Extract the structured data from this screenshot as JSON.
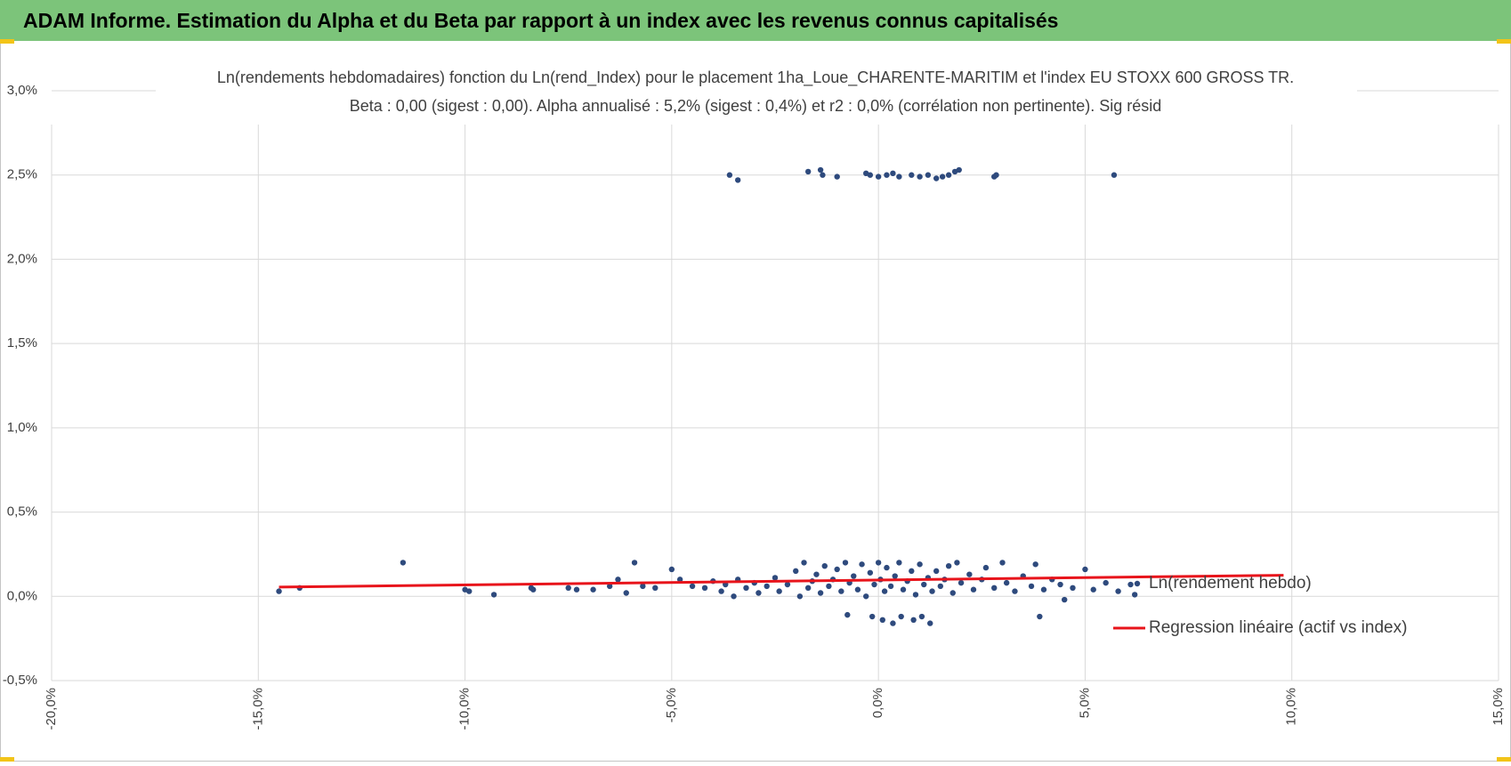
{
  "header": {
    "title": "ADAM Informe. Estimation du Alpha et du Beta par rapport à un index avec les revenus connus capitalisés"
  },
  "chart_data": {
    "type": "scatter",
    "title": "Ln(rendements hebdomadaires) fonction du Ln(rend_Index) pour le placement 1ha_Loue_CHARENTE-MARITIM et l'index EU STOXX 600 GROSS TR.",
    "subtitle": "Beta : 0,00 (sigest : 0,00). Alpha annualisé : 5,2% (sigest : 0,4%) et r2 : 0,0% (corrélation non pertinente). Sig résid",
    "xlim": [
      -20,
      15
    ],
    "xticks": [
      {
        "value": -20,
        "label": "-20,0%"
      },
      {
        "value": -15,
        "label": "-15,0%"
      },
      {
        "value": -10,
        "label": "-10,0%"
      },
      {
        "value": -5,
        "label": "-5,0%"
      },
      {
        "value": 0,
        "label": "0,0%"
      },
      {
        "value": 5,
        "label": "5,0%"
      },
      {
        "value": 10,
        "label": "10,0%"
      },
      {
        "value": 15,
        "label": "15,0%"
      }
    ],
    "ylim": [
      -0.5,
      3.0
    ],
    "yticks": [
      {
        "value": -0.5,
        "label": "-0,5%"
      },
      {
        "value": 0,
        "label": "0,0%"
      },
      {
        "value": 0.5,
        "label": "0,5%"
      },
      {
        "value": 1.0,
        "label": "1,0%"
      },
      {
        "value": 1.5,
        "label": "1,5%"
      },
      {
        "value": 2.0,
        "label": "2,0%"
      },
      {
        "value": 2.5,
        "label": "2,5%"
      },
      {
        "value": 3.0,
        "label": "3,0%"
      }
    ],
    "grid": true,
    "legend": "right",
    "series": [
      {
        "name": "Ln(rendement hebdo)",
        "type": "scatter",
        "color": "#2e4a7d",
        "x": [
          -14.5,
          -14,
          -11.5,
          -10,
          -9.9,
          -9.3,
          -8.4,
          -8.35,
          -7.5,
          -7.3,
          -6.9,
          -6.5,
          -6.3,
          -6.1,
          -5.9,
          -5.7,
          -5.4,
          -5.0,
          -4.8,
          -4.5,
          -4.2,
          -4.0,
          -3.8,
          -3.7,
          -3.5,
          -3.4,
          -3.2,
          -3.0,
          -2.9,
          -2.7,
          -2.5,
          -2.4,
          -2.2,
          -2.0,
          -1.9,
          -1.8,
          -1.7,
          -1.6,
          -1.5,
          -1.4,
          -1.3,
          -1.2,
          -1.1,
          -1.0,
          -0.9,
          -0.8,
          -0.75,
          -0.7,
          -0.6,
          -0.5,
          -0.4,
          -0.3,
          -0.2,
          -0.15,
          -0.1,
          0,
          0.05,
          0.1,
          0.15,
          0.2,
          0.3,
          0.35,
          0.4,
          0.5,
          0.55,
          0.6,
          0.7,
          0.8,
          0.85,
          0.9,
          1.0,
          1.05,
          1.1,
          1.2,
          1.25,
          1.3,
          1.4,
          1.5,
          1.6,
          1.7,
          1.8,
          1.9,
          2.0,
          2.2,
          2.3,
          2.5,
          2.6,
          2.8,
          3.0,
          3.1,
          3.3,
          3.5,
          3.7,
          3.8,
          4.0,
          4.2,
          4.4,
          4.5,
          4.7,
          3.9,
          5.0,
          5.2,
          5.5,
          5.8,
          6.1,
          6.2,
          -3.6,
          -3.4,
          -1.7,
          -1.4,
          -1.35,
          -1.0,
          -0.3,
          -0.2,
          0,
          0.2,
          0.35,
          0.5,
          0.8,
          1.0,
          1.2,
          1.4,
          1.55,
          1.7,
          1.85,
          1.95,
          2.8,
          2.85,
          5.7
        ],
        "values": [
          0.03,
          0.05,
          0.2,
          0.04,
          0.03,
          0.01,
          0.05,
          0.04,
          0.05,
          0.04,
          0.04,
          0.06,
          0.1,
          0.02,
          0.2,
          0.06,
          0.05,
          0.16,
          0.1,
          0.06,
          0.05,
          0.09,
          0.03,
          0.07,
          0.0,
          0.1,
          0.05,
          0.08,
          0.02,
          0.06,
          0.11,
          0.03,
          0.07,
          0.15,
          0.0,
          0.2,
          0.05,
          0.09,
          0.13,
          0.02,
          0.18,
          0.06,
          0.1,
          0.16,
          0.03,
          0.2,
          -0.11,
          0.08,
          0.12,
          0.04,
          0.19,
          0.0,
          0.14,
          -0.12,
          0.07,
          0.2,
          0.1,
          -0.14,
          0.03,
          0.17,
          0.06,
          -0.16,
          0.12,
          0.2,
          -0.12,
          0.04,
          0.09,
          0.15,
          -0.14,
          0.01,
          0.19,
          -0.12,
          0.07,
          0.11,
          -0.16,
          0.03,
          0.15,
          0.06,
          0.1,
          0.18,
          0.02,
          0.2,
          0.08,
          0.13,
          0.04,
          0.1,
          0.17,
          0.05,
          0.2,
          0.08,
          0.03,
          0.12,
          0.06,
          0.19,
          0.04,
          0.1,
          0.07,
          -0.02,
          0.05,
          -0.12,
          0.16,
          0.04,
          0.08,
          0.03,
          0.07,
          0.01,
          2.5,
          2.47,
          2.52,
          2.53,
          2.5,
          2.49,
          2.51,
          2.5,
          2.49,
          2.5,
          2.51,
          2.49,
          2.5,
          2.49,
          2.5,
          2.48,
          2.49,
          2.5,
          2.52,
          2.53,
          2.49,
          2.5,
          2.5
        ]
      },
      {
        "name": "Regression linéaire (actif vs index)",
        "type": "line",
        "color": "#e8141b",
        "x": [
          -14.5,
          9.8
        ],
        "values": [
          0.055,
          0.125
        ]
      }
    ]
  }
}
